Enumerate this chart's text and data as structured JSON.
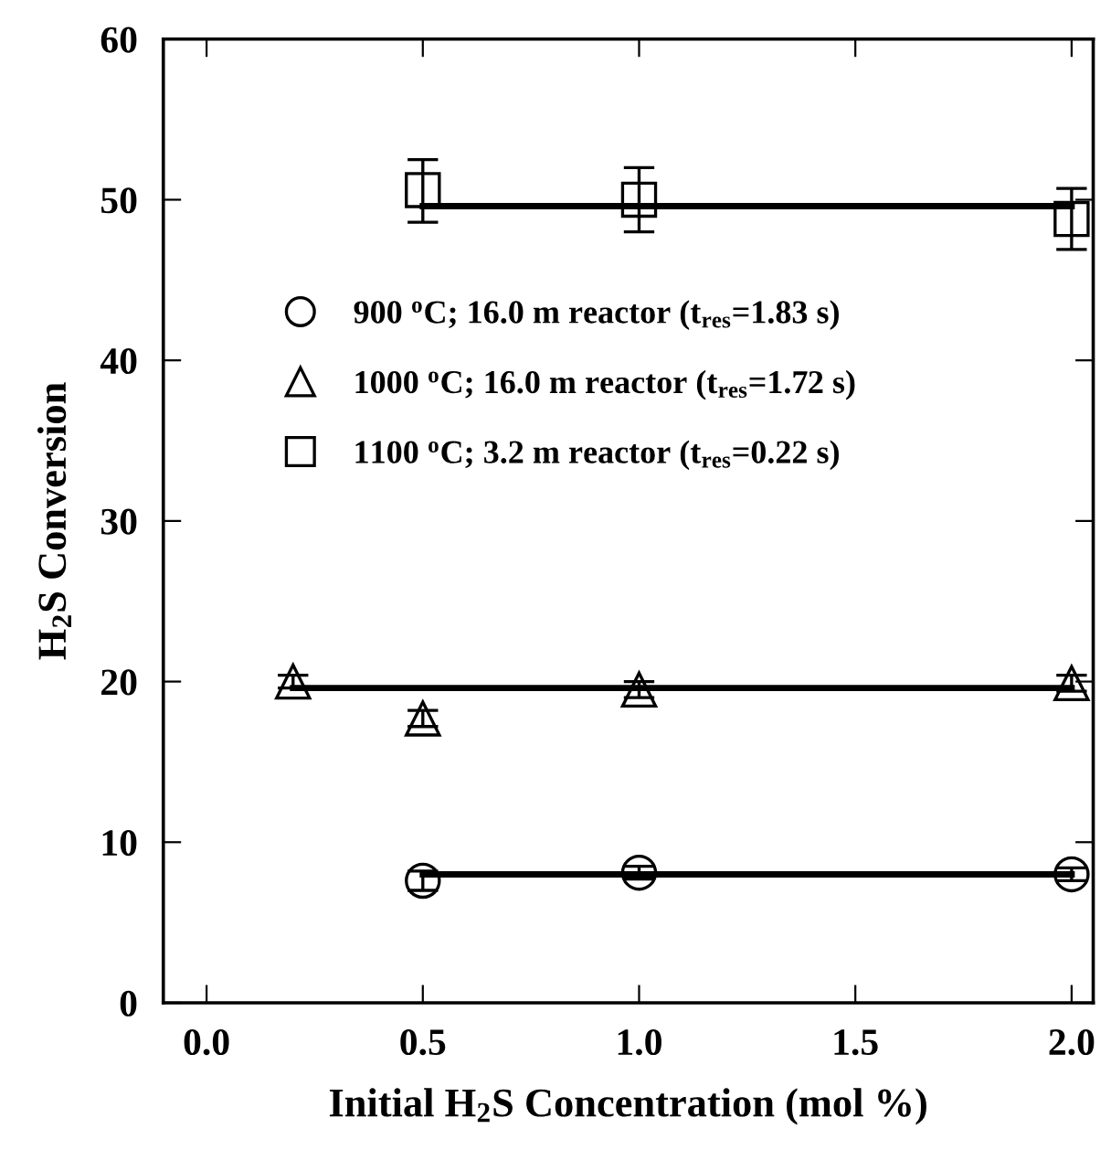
{
  "chart_data": {
    "type": "scatter",
    "xlabel": "Initial H$_{2}$S Concentration (mol %)",
    "ylabel": "H$_{2}$S Conversion",
    "xlim": [
      -0.1,
      2.05
    ],
    "xticks": [
      {
        "value": 0.0,
        "label": "0.0"
      },
      0.5,
      {
        "value": 1.0,
        "label": "1.0"
      },
      1.5,
      {
        "value": 2.0,
        "label": "2.0"
      }
    ],
    "ylim": [
      0,
      60
    ],
    "yticks": [
      0,
      10,
      20,
      30,
      40,
      50,
      60
    ],
    "grid": false,
    "legend": "top left",
    "series": [
      {
        "name": "900 $^{o}$C; 16.0 m reactor (t$_{res}$=1.83 s)",
        "color": "#000000",
        "marker": "circle",
        "x": [
          0.5,
          1.0,
          2.0
        ],
        "values": [
          7.6,
          8.1,
          8.0
        ],
        "errors": [
          0.6,
          0.4,
          0.4
        ]
      },
      {
        "name": "1000 $^{o}$C; 16.0 m reactor (t$_{res}$=1.72 s)",
        "color": "#000000",
        "marker": "triangle",
        "x": [
          0.2,
          0.5,
          1.0,
          2.0
        ],
        "values": [
          20.0,
          17.7,
          19.5,
          19.9
        ],
        "errors": [
          0.4,
          0.5,
          0.5,
          0.5
        ]
      },
      {
        "name": "1100 $^{o}$C; 3.2 m reactor (t$_{res}$=0.22 s)",
        "color": "#000000",
        "marker": "square",
        "x": [
          0.5,
          1.0,
          2.0
        ],
        "values": [
          50.6,
          50.0,
          48.8
        ],
        "errors": [
          [
            48.6,
            52.5
          ],
          [
            48.0,
            52.0
          ],
          [
            46.9,
            50.7
          ]
        ]
      },
      {
        "type": "line",
        "color": "#000000",
        "marker": "none",
        "x": [
          0.5,
          2.0
        ],
        "values": [
          8.0,
          8.0
        ]
      },
      {
        "type": "line",
        "color": "#000000",
        "marker": "none",
        "x": [
          0.2,
          2.0
        ],
        "values": [
          19.6,
          19.6
        ]
      },
      {
        "type": "line",
        "color": "#000000",
        "marker": "none",
        "x": [
          0.5,
          2.0
        ],
        "values": [
          49.6,
          49.6
        ]
      }
    ]
  }
}
